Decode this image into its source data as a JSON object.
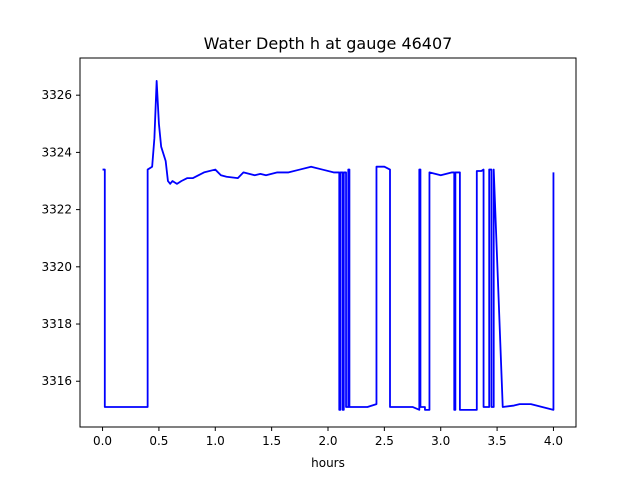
{
  "chart_data": {
    "type": "line",
    "title": "Water Depth h at gauge 46407",
    "xlabel": "hours",
    "ylabel": "",
    "xlim": [
      -0.2,
      4.2
    ],
    "ylim": [
      3314.4,
      3327.3
    ],
    "xticks": [
      0.0,
      0.5,
      1.0,
      1.5,
      2.0,
      2.5,
      3.0,
      3.5,
      4.0
    ],
    "xtick_labels": [
      "0.0",
      "0.5",
      "1.0",
      "1.5",
      "2.0",
      "2.5",
      "3.0",
      "3.5",
      "4.0"
    ],
    "yticks": [
      3316,
      3318,
      3320,
      3322,
      3324,
      3326
    ],
    "ytick_labels": [
      "3316",
      "3318",
      "3320",
      "3322",
      "3324",
      "3326"
    ],
    "grid": false,
    "series": [
      {
        "color": "#0000ff",
        "x": [
          0.0,
          0.02,
          0.02,
          0.1,
          0.2,
          0.3,
          0.4,
          0.4,
          0.44,
          0.46,
          0.48,
          0.5,
          0.52,
          0.56,
          0.58,
          0.6,
          0.62,
          0.66,
          0.7,
          0.75,
          0.8,
          0.9,
          1.0,
          1.05,
          1.1,
          1.2,
          1.25,
          1.35,
          1.4,
          1.45,
          1.55,
          1.65,
          1.75,
          1.85,
          1.95,
          2.05,
          2.1,
          2.1,
          2.11,
          2.11,
          2.13,
          2.13,
          2.14,
          2.14,
          2.16,
          2.16,
          2.18,
          2.18,
          2.19,
          2.19,
          2.25,
          2.35,
          2.43,
          2.43,
          2.5,
          2.55,
          2.55,
          2.65,
          2.75,
          2.81,
          2.81,
          2.82,
          2.82,
          2.86,
          2.86,
          2.9,
          2.9,
          3.0,
          3.1,
          3.12,
          3.12,
          3.13,
          3.13,
          3.17,
          3.17,
          3.32,
          3.32,
          3.36,
          3.38,
          3.38,
          3.43,
          3.43,
          3.45,
          3.45,
          3.47,
          3.47,
          3.55,
          3.65,
          3.7,
          3.8,
          3.9,
          4.0,
          4.0
        ],
        "y": [
          3323.4,
          3323.4,
          3315.1,
          3315.1,
          3315.1,
          3315.1,
          3315.1,
          3323.4,
          3323.5,
          3324.5,
          3326.5,
          3325.0,
          3324.2,
          3323.7,
          3323.0,
          3322.9,
          3323.0,
          3322.9,
          3323.0,
          3323.1,
          3323.1,
          3323.3,
          3323.4,
          3323.2,
          3323.15,
          3323.1,
          3323.3,
          3323.2,
          3323.25,
          3323.2,
          3323.3,
          3323.3,
          3323.4,
          3323.5,
          3323.4,
          3323.3,
          3323.3,
          3315.0,
          3315.0,
          3323.3,
          3323.3,
          3315.0,
          3315.0,
          3323.3,
          3323.3,
          3315.1,
          3315.1,
          3323.4,
          3323.4,
          3315.1,
          3315.1,
          3315.1,
          3315.2,
          3323.5,
          3323.5,
          3323.4,
          3315.1,
          3315.1,
          3315.1,
          3315.0,
          3323.4,
          3323.4,
          3315.1,
          3315.1,
          3315.0,
          3315.0,
          3323.3,
          3323.2,
          3323.3,
          3323.3,
          3315.0,
          3315.0,
          3323.3,
          3323.3,
          3315.0,
          3315.0,
          3323.35,
          3323.35,
          3323.4,
          3315.1,
          3315.1,
          3323.4,
          3323.4,
          3315.1,
          3315.1,
          3323.4,
          3315.1,
          3315.15,
          3315.2,
          3315.2,
          3315.1,
          3315.0,
          3323.3
        ]
      }
    ]
  }
}
